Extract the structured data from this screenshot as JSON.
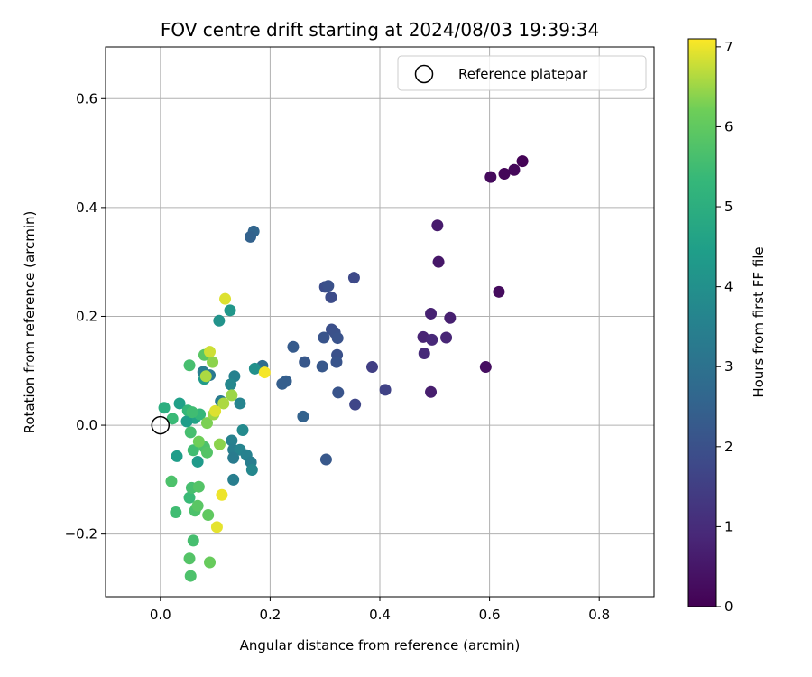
{
  "chart_data": {
    "type": "scatter",
    "title": "FOV centre drift starting at 2024/08/03 19:39:34",
    "xlabel": "Angular distance from reference (arcmin)",
    "ylabel": "Rotation from reference (arcmin)",
    "xlim": [
      -0.1,
      0.9
    ],
    "ylim": [
      -0.315,
      0.695
    ],
    "xticks": [
      0.0,
      0.2,
      0.4,
      0.6,
      0.8
    ],
    "xtick_labels": [
      "0.0",
      "0.2",
      "0.4",
      "0.6",
      "0.8"
    ],
    "yticks": [
      -0.2,
      0.0,
      0.2,
      0.4,
      0.6
    ],
    "ytick_labels": [
      "−0.2",
      "0.0",
      "0.2",
      "0.4",
      "0.6"
    ],
    "grid": true,
    "legend": {
      "placement": "top-right",
      "entries": [
        {
          "label": "Reference platepar",
          "marker": "open-circle"
        }
      ]
    },
    "reference_point": {
      "x": 0.0,
      "y": 0.0
    },
    "colorbar": {
      "label": "Hours from first FF file",
      "colormap": "viridis",
      "range": [
        0,
        7.1
      ],
      "ticks": [
        0,
        1,
        2,
        3,
        4,
        5,
        6,
        7
      ],
      "tick_labels": [
        "0",
        "1",
        "2",
        "3",
        "4",
        "5",
        "6",
        "7"
      ]
    },
    "points": [
      {
        "x": 0.66,
        "y": 0.485,
        "c": 0.05
      },
      {
        "x": 0.645,
        "y": 0.469,
        "c": 0.15
      },
      {
        "x": 0.627,
        "y": 0.462,
        "c": 0.1
      },
      {
        "x": 0.602,
        "y": 0.456,
        "c": 0.2
      },
      {
        "x": 0.617,
        "y": 0.245,
        "c": 0.25
      },
      {
        "x": 0.593,
        "y": 0.107,
        "c": 0.3
      },
      {
        "x": 0.505,
        "y": 0.367,
        "c": 0.6
      },
      {
        "x": 0.507,
        "y": 0.3,
        "c": 0.5
      },
      {
        "x": 0.528,
        "y": 0.197,
        "c": 0.7
      },
      {
        "x": 0.493,
        "y": 0.205,
        "c": 0.75
      },
      {
        "x": 0.479,
        "y": 0.162,
        "c": 0.8
      },
      {
        "x": 0.495,
        "y": 0.157,
        "c": 0.9
      },
      {
        "x": 0.521,
        "y": 0.161,
        "c": 0.85
      },
      {
        "x": 0.481,
        "y": 0.132,
        "c": 0.95
      },
      {
        "x": 0.493,
        "y": 0.061,
        "c": 0.65
      },
      {
        "x": 0.41,
        "y": 0.065,
        "c": 1.6
      },
      {
        "x": 0.386,
        "y": 0.107,
        "c": 1.5
      },
      {
        "x": 0.353,
        "y": 0.271,
        "c": 1.8
      },
      {
        "x": 0.355,
        "y": 0.038,
        "c": 1.7
      },
      {
        "x": 0.3,
        "y": 0.254,
        "c": 1.9
      },
      {
        "x": 0.306,
        "y": 0.256,
        "c": 2.0
      },
      {
        "x": 0.311,
        "y": 0.235,
        "c": 1.85
      },
      {
        "x": 0.312,
        "y": 0.176,
        "c": 1.95
      },
      {
        "x": 0.318,
        "y": 0.17,
        "c": 2.0
      },
      {
        "x": 0.323,
        "y": 0.16,
        "c": 2.05
      },
      {
        "x": 0.298,
        "y": 0.161,
        "c": 2.1
      },
      {
        "x": 0.322,
        "y": 0.129,
        "c": 2.0
      },
      {
        "x": 0.321,
        "y": 0.116,
        "c": 2.1
      },
      {
        "x": 0.295,
        "y": 0.108,
        "c": 2.2
      },
      {
        "x": 0.263,
        "y": 0.116,
        "c": 2.2
      },
      {
        "x": 0.324,
        "y": 0.06,
        "c": 2.1
      },
      {
        "x": 0.242,
        "y": 0.144,
        "c": 2.3
      },
      {
        "x": 0.229,
        "y": 0.081,
        "c": 2.4
      },
      {
        "x": 0.222,
        "y": 0.076,
        "c": 2.4
      },
      {
        "x": 0.26,
        "y": 0.016,
        "c": 2.5
      },
      {
        "x": 0.302,
        "y": -0.063,
        "c": 2.2
      },
      {
        "x": 0.17,
        "y": 0.356,
        "c": 2.6
      },
      {
        "x": 0.164,
        "y": 0.346,
        "c": 2.5
      },
      {
        "x": 0.186,
        "y": 0.109,
        "c": 2.8
      },
      {
        "x": 0.09,
        "y": 0.092,
        "c": 3.2
      },
      {
        "x": 0.078,
        "y": 0.098,
        "c": 3.4
      },
      {
        "x": 0.135,
        "y": 0.09,
        "c": 3.5
      },
      {
        "x": 0.11,
        "y": 0.044,
        "c": 3.3
      },
      {
        "x": 0.145,
        "y": 0.04,
        "c": 3.6
      },
      {
        "x": 0.128,
        "y": 0.075,
        "c": 3.7
      },
      {
        "x": 0.15,
        "y": -0.009,
        "c": 3.8
      },
      {
        "x": 0.13,
        "y": -0.028,
        "c": 3.5
      },
      {
        "x": 0.133,
        "y": -0.045,
        "c": 3.4
      },
      {
        "x": 0.145,
        "y": -0.045,
        "c": 3.6
      },
      {
        "x": 0.157,
        "y": -0.055,
        "c": 3.5
      },
      {
        "x": 0.165,
        "y": -0.068,
        "c": 3.4
      },
      {
        "x": 0.133,
        "y": -0.06,
        "c": 3.3
      },
      {
        "x": 0.167,
        "y": -0.082,
        "c": 3.7
      },
      {
        "x": 0.133,
        "y": -0.1,
        "c": 3.4
      },
      {
        "x": 0.172,
        "y": 0.104,
        "c": 4.0
      },
      {
        "x": 0.127,
        "y": 0.211,
        "c": 4.2
      },
      {
        "x": 0.107,
        "y": 0.192,
        "c": 4.1
      },
      {
        "x": 0.08,
        "y": 0.085,
        "c": 4.3
      },
      {
        "x": 0.035,
        "y": 0.04,
        "c": 4.5
      },
      {
        "x": 0.03,
        "y": -0.057,
        "c": 4.4
      },
      {
        "x": 0.068,
        "y": -0.067,
        "c": 4.3
      },
      {
        "x": 0.063,
        "y": 0.013,
        "c": 4.6
      },
      {
        "x": 0.048,
        "y": 0.007,
        "c": 4.4
      },
      {
        "x": 0.007,
        "y": 0.032,
        "c": 5.0
      },
      {
        "x": 0.05,
        "y": 0.027,
        "c": 5.3
      },
      {
        "x": 0.022,
        "y": 0.012,
        "c": 5.4
      },
      {
        "x": 0.072,
        "y": 0.02,
        "c": 5.3
      },
      {
        "x": 0.058,
        "y": 0.024,
        "c": 5.5
      },
      {
        "x": 0.055,
        "y": -0.013,
        "c": 5.6
      },
      {
        "x": 0.06,
        "y": -0.046,
        "c": 5.5
      },
      {
        "x": 0.08,
        "y": -0.04,
        "c": 5.7
      },
      {
        "x": 0.085,
        "y": -0.05,
        "c": 5.8
      },
      {
        "x": 0.053,
        "y": 0.11,
        "c": 5.6
      },
      {
        "x": 0.08,
        "y": 0.129,
        "c": 5.9
      },
      {
        "x": 0.02,
        "y": -0.103,
        "c": 5.7
      },
      {
        "x": 0.028,
        "y": -0.16,
        "c": 5.5
      },
      {
        "x": 0.053,
        "y": -0.133,
        "c": 5.4
      },
      {
        "x": 0.057,
        "y": -0.115,
        "c": 5.6
      },
      {
        "x": 0.07,
        "y": -0.113,
        "c": 5.8
      },
      {
        "x": 0.063,
        "y": -0.157,
        "c": 5.7
      },
      {
        "x": 0.068,
        "y": -0.148,
        "c": 5.9
      },
      {
        "x": 0.06,
        "y": -0.212,
        "c": 5.6
      },
      {
        "x": 0.087,
        "y": -0.165,
        "c": 6.0
      },
      {
        "x": 0.053,
        "y": -0.245,
        "c": 5.8
      },
      {
        "x": 0.055,
        "y": -0.277,
        "c": 5.7
      },
      {
        "x": 0.09,
        "y": -0.252,
        "c": 6.1
      },
      {
        "x": 0.07,
        "y": -0.03,
        "c": 6.2
      },
      {
        "x": 0.108,
        "y": -0.035,
        "c": 6.4
      },
      {
        "x": 0.085,
        "y": 0.004,
        "c": 6.3
      },
      {
        "x": 0.097,
        "y": 0.02,
        "c": 6.5
      },
      {
        "x": 0.095,
        "y": 0.116,
        "c": 6.4
      },
      {
        "x": 0.115,
        "y": 0.04,
        "c": 6.6
      },
      {
        "x": 0.13,
        "y": 0.055,
        "c": 6.5
      },
      {
        "x": 0.09,
        "y": 0.135,
        "c": 6.8
      },
      {
        "x": 0.083,
        "y": 0.09,
        "c": 6.6
      },
      {
        "x": 0.118,
        "y": 0.232,
        "c": 6.9
      },
      {
        "x": 0.19,
        "y": 0.097,
        "c": 7.05
      },
      {
        "x": 0.1,
        "y": 0.026,
        "c": 6.9
      },
      {
        "x": 0.112,
        "y": -0.128,
        "c": 7.0
      },
      {
        "x": 0.103,
        "y": -0.187,
        "c": 6.95
      }
    ]
  }
}
